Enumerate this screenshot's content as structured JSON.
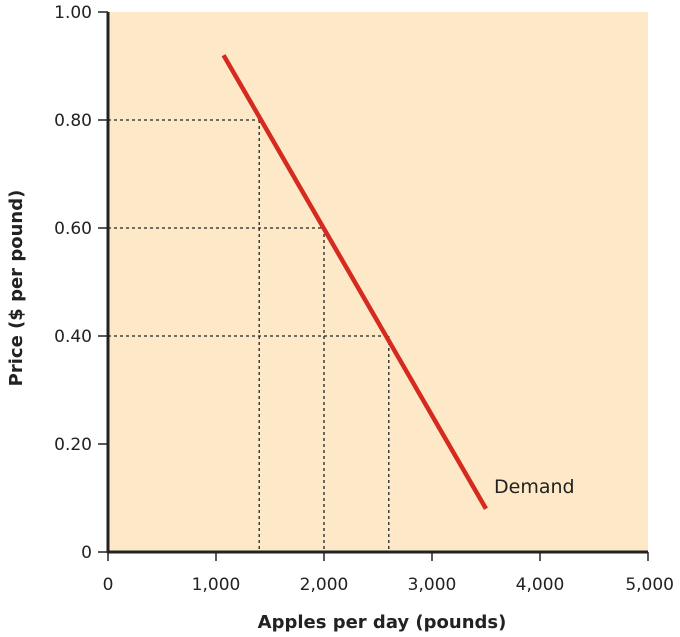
{
  "chart_data": {
    "type": "line",
    "title": "",
    "xlabel": "Apples per day (pounds)",
    "ylabel": "Price ($ per pound)",
    "xlim": [
      0,
      5000
    ],
    "ylim": [
      0,
      1.0
    ],
    "x_ticks": [
      {
        "value": 0,
        "label": "0"
      },
      {
        "value": 1000,
        "label": "1,000"
      },
      {
        "value": 2000,
        "label": "2,000"
      },
      {
        "value": 3000,
        "label": "3,000"
      },
      {
        "value": 4000,
        "label": "4,000"
      },
      {
        "value": 5000,
        "label": "5,000"
      }
    ],
    "y_ticks": [
      {
        "value": 0,
        "label": "0"
      },
      {
        "value": 0.2,
        "label": "0.20"
      },
      {
        "value": 0.4,
        "label": "0.40"
      },
      {
        "value": 0.6,
        "label": "0.60"
      },
      {
        "value": 0.8,
        "label": "0.80"
      },
      {
        "value": 1.0,
        "label": "1.00"
      }
    ],
    "grid": false,
    "series": [
      {
        "name": "Demand",
        "color": "#d42a1f",
        "x": [
          1070,
          3500
        ],
        "y": [
          0.92,
          0.08
        ]
      }
    ],
    "guide_points": [
      {
        "x": 1400,
        "y": 0.8
      },
      {
        "x": 2000,
        "y": 0.6
      },
      {
        "x": 2600,
        "y": 0.4
      }
    ],
    "colors": {
      "plot_background": "#fde9c8",
      "axis": "#222222",
      "guide": "#222222"
    }
  }
}
